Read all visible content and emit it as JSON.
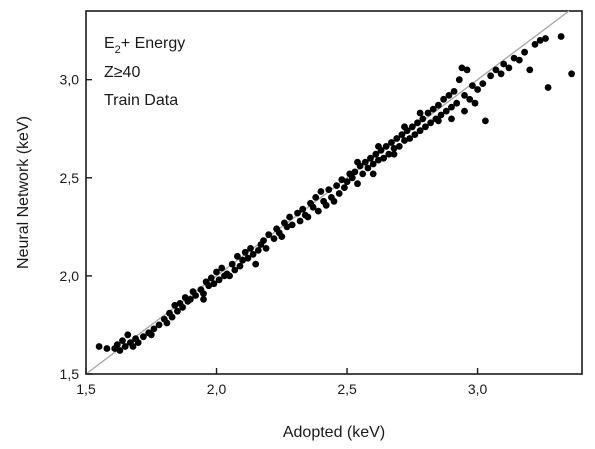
{
  "chart_data": {
    "type": "scatter",
    "title": "",
    "xlabel": "Adopted (keV)",
    "ylabel": "Neural Network (keV)",
    "xlim": [
      1.5,
      3.4
    ],
    "ylim": [
      1.5,
      3.35
    ],
    "xticks": [
      1.5,
      2.0,
      2.5,
      3.0
    ],
    "yticks": [
      1.5,
      2.0,
      2.5,
      3.0
    ],
    "xtick_labels": [
      "1,5",
      "2,0",
      "2,5",
      "3,0"
    ],
    "ytick_labels": [
      "1,5",
      "2,0",
      "2,5",
      "3,0"
    ],
    "grid": false,
    "reference_line": {
      "from": [
        1.5,
        1.5
      ],
      "to": [
        3.4,
        3.4
      ],
      "color": "#a8a8a8"
    },
    "annotations": {
      "line1_main": "E",
      "line1_sub": "2",
      "line1_rest": "+ Energy",
      "line2": "Z≥40",
      "line3": "Train Data"
    },
    "series": [
      {
        "color": "#000000",
        "points": [
          [
            1.55,
            1.64
          ],
          [
            1.58,
            1.63
          ],
          [
            1.61,
            1.63
          ],
          [
            1.62,
            1.65
          ],
          [
            1.63,
            1.62
          ],
          [
            1.64,
            1.67
          ],
          [
            1.65,
            1.64
          ],
          [
            1.66,
            1.7
          ],
          [
            1.67,
            1.66
          ],
          [
            1.68,
            1.64
          ],
          [
            1.69,
            1.68
          ],
          [
            1.7,
            1.66
          ],
          [
            1.72,
            1.69
          ],
          [
            1.74,
            1.71
          ],
          [
            1.76,
            1.73
          ],
          [
            1.78,
            1.75
          ],
          [
            1.8,
            1.78
          ],
          [
            1.81,
            1.76
          ],
          [
            1.82,
            1.81
          ],
          [
            1.83,
            1.79
          ],
          [
            1.84,
            1.85
          ],
          [
            1.85,
            1.82
          ],
          [
            1.86,
            1.86
          ],
          [
            1.87,
            1.84
          ],
          [
            1.88,
            1.89
          ],
          [
            1.89,
            1.87
          ],
          [
            1.9,
            1.88
          ],
          [
            1.91,
            1.92
          ],
          [
            1.92,
            1.9
          ],
          [
            1.94,
            1.93
          ],
          [
            1.95,
            1.91
          ],
          [
            1.96,
            1.97
          ],
          [
            1.97,
            1.95
          ],
          [
            1.98,
            1.99
          ],
          [
            1.99,
            1.96
          ],
          [
            2.0,
            2.02
          ],
          [
            2.01,
            1.98
          ],
          [
            2.02,
            2.04
          ],
          [
            2.03,
            2.0
          ],
          [
            2.04,
            2.01
          ],
          [
            2.06,
            2.06
          ],
          [
            2.07,
            2.03
          ],
          [
            2.08,
            2.1
          ],
          [
            2.09,
            2.05
          ],
          [
            2.1,
            2.08
          ],
          [
            2.11,
            2.12
          ],
          [
            2.12,
            2.09
          ],
          [
            2.13,
            2.14
          ],
          [
            2.14,
            2.11
          ],
          [
            2.15,
            2.06
          ],
          [
            2.16,
            2.13
          ],
          [
            2.17,
            2.16
          ],
          [
            2.18,
            2.18
          ],
          [
            2.19,
            2.14
          ],
          [
            2.2,
            2.21
          ],
          [
            2.22,
            2.19
          ],
          [
            2.23,
            2.24
          ],
          [
            2.24,
            2.22
          ],
          [
            2.26,
            2.27
          ],
          [
            2.27,
            2.25
          ],
          [
            2.28,
            2.3
          ],
          [
            2.29,
            2.26
          ],
          [
            2.31,
            2.32
          ],
          [
            2.32,
            2.28
          ],
          [
            2.33,
            2.34
          ],
          [
            2.34,
            2.31
          ],
          [
            2.36,
            2.37
          ],
          [
            2.37,
            2.35
          ],
          [
            2.38,
            2.4
          ],
          [
            2.39,
            2.33
          ],
          [
            2.4,
            2.43
          ],
          [
            2.41,
            2.38
          ],
          [
            2.42,
            2.36
          ],
          [
            2.43,
            2.44
          ],
          [
            2.44,
            2.4
          ],
          [
            2.46,
            2.46
          ],
          [
            2.47,
            2.42
          ],
          [
            2.48,
            2.49
          ],
          [
            2.49,
            2.45
          ],
          [
            2.5,
            2.48
          ],
          [
            2.51,
            2.52
          ],
          [
            2.52,
            2.5
          ],
          [
            2.53,
            2.53
          ],
          [
            2.54,
            2.47
          ],
          [
            2.55,
            2.56
          ],
          [
            2.56,
            2.52
          ],
          [
            2.57,
            2.58
          ],
          [
            2.58,
            2.55
          ],
          [
            2.59,
            2.6
          ],
          [
            2.6,
            2.57
          ],
          [
            2.61,
            2.62
          ],
          [
            2.62,
            2.59
          ],
          [
            2.63,
            2.64
          ],
          [
            2.64,
            2.6
          ],
          [
            2.65,
            2.66
          ],
          [
            2.66,
            2.62
          ],
          [
            2.67,
            2.68
          ],
          [
            2.68,
            2.65
          ],
          [
            2.69,
            2.7
          ],
          [
            2.7,
            2.66
          ],
          [
            2.71,
            2.72
          ],
          [
            2.72,
            2.69
          ],
          [
            2.73,
            2.74
          ],
          [
            2.74,
            2.7
          ],
          [
            2.75,
            2.76
          ],
          [
            2.76,
            2.72
          ],
          [
            2.77,
            2.78
          ],
          [
            2.78,
            2.74
          ],
          [
            2.79,
            2.8
          ],
          [
            2.8,
            2.76
          ],
          [
            2.81,
            2.83
          ],
          [
            2.82,
            2.78
          ],
          [
            2.83,
            2.85
          ],
          [
            2.84,
            2.8
          ],
          [
            2.85,
            2.87
          ],
          [
            2.86,
            2.82
          ],
          [
            2.87,
            2.9
          ],
          [
            2.88,
            2.84
          ],
          [
            2.89,
            2.92
          ],
          [
            2.9,
            2.86
          ],
          [
            2.91,
            2.94
          ],
          [
            2.92,
            2.88
          ],
          [
            2.93,
            3.0
          ],
          [
            2.94,
            3.06
          ],
          [
            2.95,
            2.92
          ],
          [
            2.96,
            3.05
          ],
          [
            2.97,
            2.9
          ],
          [
            2.98,
            2.97
          ],
          [
            2.99,
            2.88
          ],
          [
            3.0,
            2.95
          ],
          [
            3.02,
            2.98
          ],
          [
            3.03,
            2.79
          ],
          [
            3.05,
            3.02
          ],
          [
            3.07,
            3.05
          ],
          [
            3.09,
            3.03
          ],
          [
            3.1,
            3.08
          ],
          [
            3.12,
            3.06
          ],
          [
            3.14,
            3.11
          ],
          [
            3.16,
            3.1
          ],
          [
            3.18,
            3.14
          ],
          [
            3.2,
            3.05
          ],
          [
            3.22,
            3.18
          ],
          [
            3.24,
            3.2
          ],
          [
            3.26,
            3.21
          ],
          [
            3.27,
            2.96
          ],
          [
            3.32,
            3.22
          ],
          [
            3.36,
            3.03
          ],
          [
            2.45,
            2.38
          ],
          [
            2.35,
            2.3
          ],
          [
            2.25,
            2.2
          ],
          [
            2.05,
            2.0
          ],
          [
            1.95,
            1.88
          ],
          [
            1.75,
            1.7
          ],
          [
            2.6,
            2.52
          ],
          [
            2.68,
            2.62
          ],
          [
            2.78,
            2.83
          ],
          [
            2.85,
            2.79
          ],
          [
            2.72,
            2.76
          ],
          [
            2.62,
            2.66
          ],
          [
            2.54,
            2.58
          ],
          [
            2.9,
            2.8
          ],
          [
            2.95,
            2.84
          ]
        ]
      }
    ]
  }
}
